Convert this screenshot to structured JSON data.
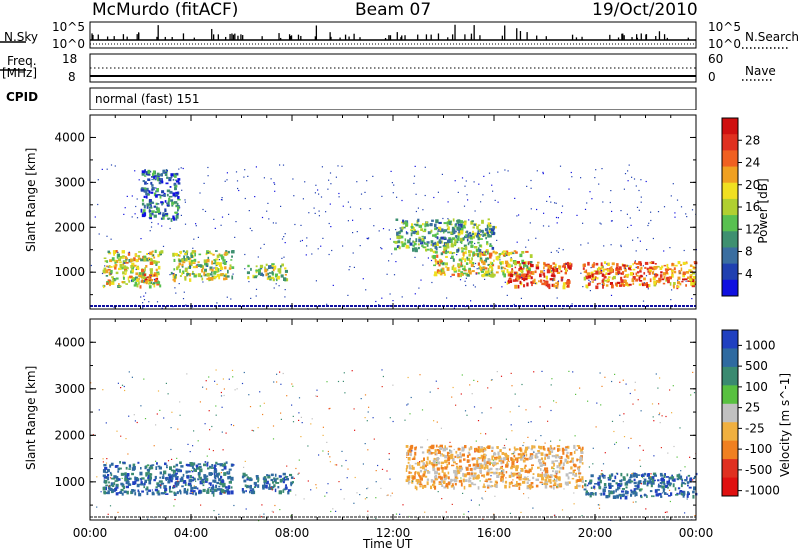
{
  "header": {
    "station": "McMurdo (fitACF)",
    "beam": "Beam 07",
    "date": "19/Oct/2010"
  },
  "top_panels": {
    "nsky_label": "N.Sky",
    "nsearch_label": "N.Search",
    "freq_label": "Freq.",
    "freq_unit": "[MHz]",
    "nave_label": "Nave",
    "cpid_label": "CPID",
    "cpid_value": "normal (fast) 151",
    "noise_ticks_left": [
      "10^5",
      "10^0"
    ],
    "noise_ticks_right": [
      "10^5",
      "10^0"
    ],
    "freq_ticks": [
      "18",
      "8"
    ],
    "nave_ticks": [
      "60",
      "0"
    ]
  },
  "chart_data": [
    {
      "type": "heatmap",
      "name": "power",
      "ylabel": "Slant Range [km]",
      "ylim": [
        180,
        4500
      ],
      "yticks": [
        "4000",
        "3000",
        "2000",
        "1000"
      ],
      "xlim": [
        0,
        24
      ],
      "colorbar": {
        "label": "Power [dB]",
        "ticks": [
          "28",
          "24",
          "20",
          "16",
          "12",
          "8",
          "4"
        ],
        "colors": [
          "#1010e0",
          "#2040b0",
          "#3a6ea0",
          "#3e9070",
          "#58c050",
          "#b0d030",
          "#f0e020",
          "#f0a020",
          "#f06020",
          "#e03020",
          "#d01010"
        ]
      },
      "echo_regions": [
        {
          "t": [
            0.5,
            2.8
          ],
          "r": [
            700,
            1500
          ],
          "level": 0.55
        },
        {
          "t": [
            2.0,
            2.6
          ],
          "r": [
            780,
            1000
          ],
          "level": 0.9
        },
        {
          "t": [
            3.2,
            5.6
          ],
          "r": [
            850,
            1500
          ],
          "level": 0.5
        },
        {
          "t": [
            6.2,
            7.8
          ],
          "r": [
            850,
            1200
          ],
          "level": 0.45
        },
        {
          "t": [
            13.5,
            17.5
          ],
          "r": [
            950,
            1500
          ],
          "level": 0.55
        },
        {
          "t": [
            16.5,
            19.0
          ],
          "r": [
            700,
            1250
          ],
          "level": 0.85
        },
        {
          "t": [
            19.5,
            24.0
          ],
          "r": [
            700,
            1250
          ],
          "level": 0.75
        },
        {
          "t": [
            12.0,
            16.0
          ],
          "r": [
            1500,
            2200
          ],
          "level": 0.35
        },
        {
          "t": [
            2.0,
            3.5
          ],
          "r": [
            2200,
            3300
          ],
          "level": 0.2
        }
      ]
    },
    {
      "type": "heatmap",
      "name": "velocity",
      "xlabel": "Time UT",
      "ylabel": "Slant Range [km]",
      "ylim": [
        180,
        4500
      ],
      "yticks": [
        "4000",
        "3000",
        "2000",
        "1000"
      ],
      "xlim": [
        0,
        24
      ],
      "xticks": [
        "00:00",
        "04:00",
        "08:00",
        "12:00",
        "16:00",
        "20:00",
        "00:00"
      ],
      "colorbar": {
        "label": "Velocity [m s^-1]",
        "ticks": [
          "1000",
          "500",
          "100",
          "25",
          "-25",
          "-100",
          "-500",
          "-1000"
        ],
        "colors": [
          "#2040c0",
          "#2f6aa0",
          "#3a8a70",
          "#58c040",
          "#c0c0c0",
          "#f0b040",
          "#f08020",
          "#e03020",
          "#e01010"
        ]
      },
      "echo_regions": [
        {
          "t": [
            0.5,
            5.6
          ],
          "r": [
            750,
            1450
          ],
          "vel": "500"
        },
        {
          "t": [
            6.0,
            8.0
          ],
          "r": [
            800,
            1200
          ],
          "vel": "500"
        },
        {
          "t": [
            12.5,
            19.5
          ],
          "r": [
            900,
            1800
          ],
          "vel": "-100"
        },
        {
          "t": [
            19.5,
            24.0
          ],
          "r": [
            700,
            1200
          ],
          "vel": "500"
        }
      ]
    }
  ]
}
